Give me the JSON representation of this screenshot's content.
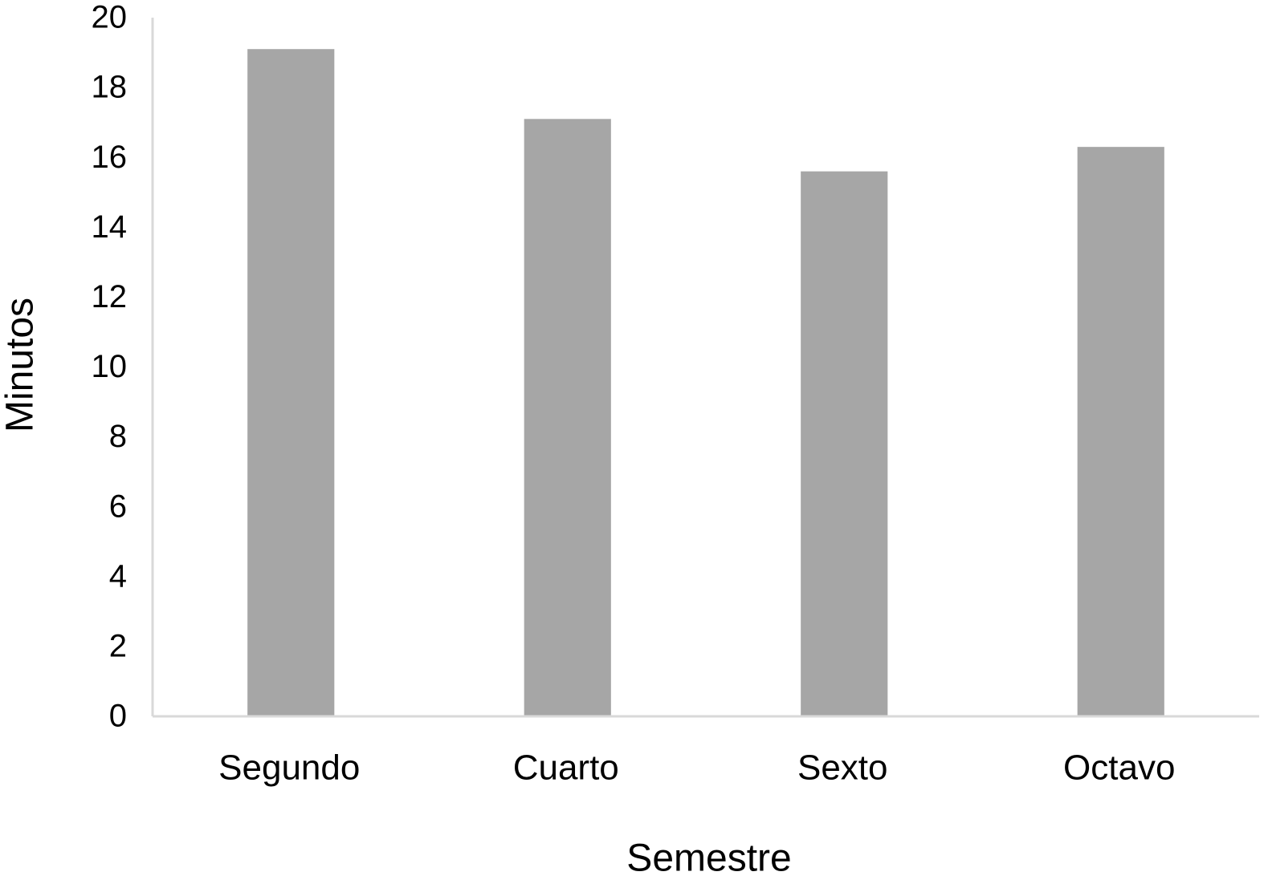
{
  "chart_data": {
    "type": "bar",
    "xlabel": "Semestre",
    "ylabel": "Minutos",
    "categories": [
      "Segundo",
      "Cuarto",
      "Sexto",
      "Octavo"
    ],
    "values": [
      19.1,
      17.1,
      15.6,
      16.3
    ],
    "color": "#a6a6a6",
    "ylim": [
      0,
      20
    ],
    "yticks": [
      0,
      2,
      4,
      6,
      8,
      10,
      12,
      14,
      16,
      18,
      20
    ],
    "grid": false
  }
}
